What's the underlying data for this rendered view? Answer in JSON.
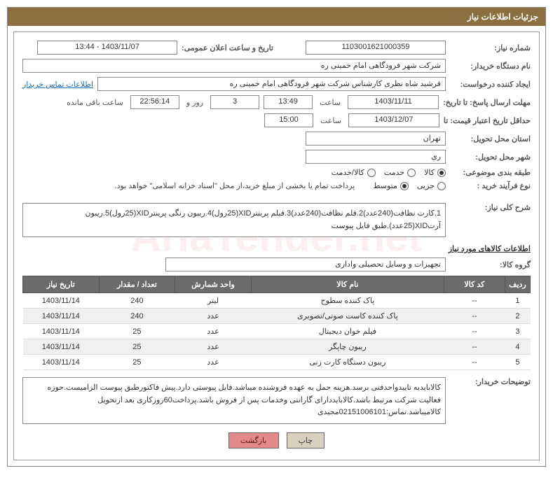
{
  "header": {
    "title": "جزئیات اطلاعات نیاز"
  },
  "fields": {
    "need_number_label": "شماره نیاز:",
    "need_number": "1103001621000359",
    "announce_datetime_label": "تاریخ و ساعت اعلان عمومی:",
    "announce_datetime": "1403/11/07 - 13:44",
    "buyer_org_label": "نام دستگاه خریدار:",
    "buyer_org": "شرکت شهر فرودگاهی امام خمینی  ره",
    "requester_label": "ایجاد کننده درخواست:",
    "requester": "فرشید شاه نظری کارشناس شرکت شهر فرودگاهی امام خمینی  ره",
    "buyer_contact_link": "اطلاعات تماس خریدار",
    "deadline_label": "مهلت ارسال پاسخ: تا تاریخ:",
    "deadline_date": "1403/11/11",
    "time_word": "ساعت",
    "deadline_time": "13:49",
    "days_remaining": "3",
    "days_and": "روز و",
    "countdown": "22:56:14",
    "remaining_suffix": "ساعت باقی مانده",
    "validity_label": "حداقل تاریخ اعتبار قیمت: تا",
    "validity_date": "1403/12/07",
    "validity_time": "15:00",
    "province_label": "استان محل تحویل:",
    "province": "تهران",
    "city_label": "شهر محل تحویل:",
    "city": "ری",
    "category_label": "طبقه بندی موضوعی:",
    "purchase_type_label": "نوع فرآیند خرید :",
    "payment_note": "پرداخت تمام یا بخشی از مبلغ خرید،از محل \"اسناد خزانه اسلامی\" خواهد بود."
  },
  "radios": {
    "category": [
      {
        "label": "کالا",
        "checked": true
      },
      {
        "label": "خدمت",
        "checked": false
      },
      {
        "label": "کالا/خدمت",
        "checked": false
      }
    ],
    "purchase_type": [
      {
        "label": "جزیی",
        "checked": false
      },
      {
        "label": "متوسط",
        "checked": true
      }
    ]
  },
  "overview": {
    "label": "شرح کلی نیاز:",
    "text": "1.کارت نظافت(240عدد)2.قلم نظافت(240عدد)3.فیلم پرینترXID(25رول)4.ریبون رنگی پرینترXID(25رول)5.ریبون آرتXID(25عدد).طبق فایل پیوست"
  },
  "items_section": {
    "title": "اطلاعات کالاهای مورد نیاز",
    "group_label": "گروه کالا:",
    "group_value": "تجهیزات و وسایل تحصیلی واداری"
  },
  "table": {
    "columns": [
      "ردیف",
      "کد کالا",
      "نام کالا",
      "واحد شمارش",
      "تعداد / مقدار",
      "تاریخ نیاز"
    ],
    "col_widths": [
      "5%",
      "12%",
      "38%",
      "15%",
      "15%",
      "15%"
    ],
    "rows": [
      [
        "1",
        "--",
        "پاک کننده سطوح",
        "لیتر",
        "240",
        "1403/11/14"
      ],
      [
        "2",
        "--",
        "پاک کننده کاست صوتی/تصویری",
        "عدد",
        "240",
        "1403/11/14"
      ],
      [
        "3",
        "--",
        "فیلم خوان دیجیتال",
        "عدد",
        "25",
        "1403/11/14"
      ],
      [
        "4",
        "--",
        "ریبون چاپگر",
        "عدد",
        "25",
        "1403/11/14"
      ],
      [
        "5",
        "--",
        "ریبون دستگاه کارت زنی",
        "عدد",
        "25",
        "1403/11/14"
      ]
    ]
  },
  "buyer_notes": {
    "label": "توضیحات خریدار:",
    "text": "کالابایدبه تاییدواحدفنی برسد.هزینه حمل به عهده فروشنده میباشد.فایل پیوستی دارد.پیش فاکتورطبق پیوست الزامیست.حوزه فعالیت شرکت مرتبط باشد.کالابایددارای گارانتی وخدمات پس از فروش باشد.پرداخت60روزکاری بعد ازتحویل کالامیباشد.تماس:02151006101مجیدی"
  },
  "buttons": {
    "print": "چاپ",
    "back": "بازگشت"
  },
  "colors": {
    "header_bg": "#8b6f3e",
    "header_text": "#ffffff",
    "th_bg": "#6b6b6b",
    "link": "#1a6eb8",
    "btn_back_bg": "#e28a8a",
    "btn_print_bg": "#d8d0be"
  }
}
